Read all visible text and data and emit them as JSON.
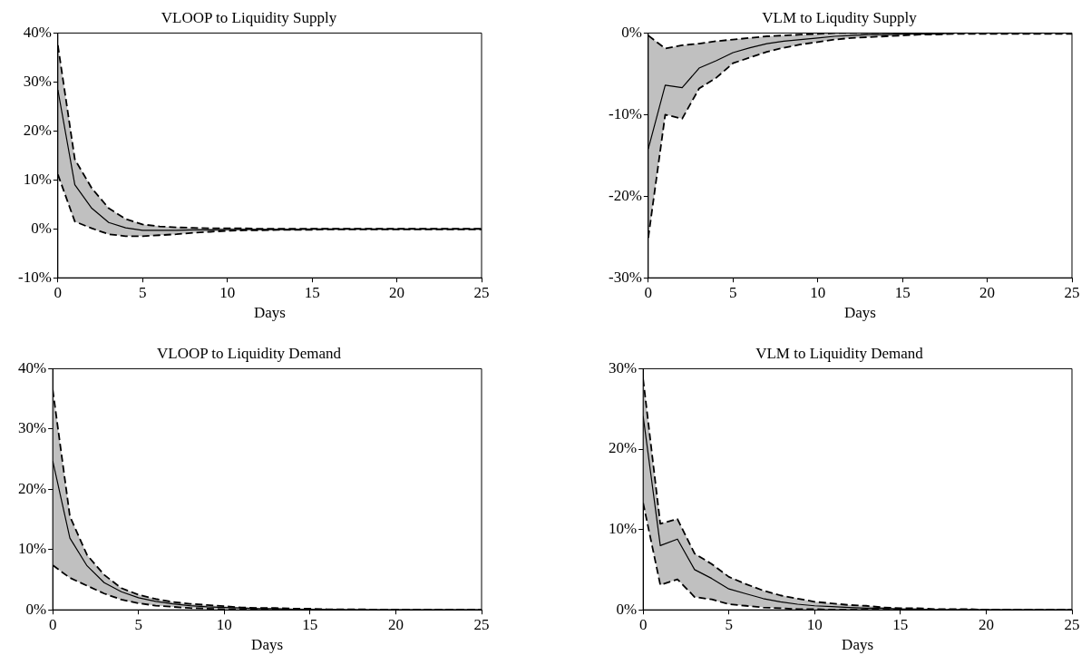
{
  "chart_data": [
    {
      "type": "line",
      "title": "VLOOP to Liquidity Supply",
      "xlabel": "Days",
      "x": [
        0,
        1,
        2,
        3,
        4,
        5,
        6,
        7,
        8,
        9,
        10,
        11,
        12,
        13,
        14,
        15,
        16,
        17,
        18,
        19,
        20,
        21,
        22,
        23,
        24,
        25
      ],
      "xlim": [
        0,
        25
      ],
      "xticks": [
        0,
        5,
        10,
        15,
        20,
        25
      ],
      "ylim": [
        -10,
        40
      ],
      "yticks": [
        {
          "value": -10,
          "label": "-10%"
        },
        {
          "value": 0,
          "label": "0%"
        },
        {
          "value": 10,
          "label": "10%"
        },
        {
          "value": 20,
          "label": "20%"
        },
        {
          "value": 30,
          "label": "30%"
        },
        {
          "value": 40,
          "label": "40%"
        }
      ],
      "grid": false,
      "legend": false,
      "marker": "none",
      "line_style": "solid",
      "series": [
        {
          "color": "#000000",
          "values": [
            28.4,
            9.0,
            4.2,
            1.3,
            0.2,
            -0.3,
            -0.3,
            -0.3,
            -0.2,
            -0.2,
            -0.1,
            -0.1,
            -0.1,
            -0.1,
            -0.1,
            0,
            0,
            0,
            0,
            0,
            0,
            0,
            0,
            0,
            0,
            0
          ],
          "upper": [
            37.5,
            14.2,
            8.3,
            4.2,
            2.0,
            0.9,
            0.5,
            0.3,
            0.2,
            0.1,
            0.1,
            0.1,
            0,
            0,
            0,
            0,
            0,
            0,
            0,
            0,
            0,
            0,
            0,
            0,
            0,
            0
          ],
          "lower": [
            11.1,
            1.5,
            0.1,
            -1.1,
            -1.5,
            -1.5,
            -1.3,
            -1.1,
            -0.8,
            -0.6,
            -0.4,
            -0.3,
            -0.3,
            -0.2,
            -0.2,
            -0.2,
            -0.1,
            -0.1,
            -0.1,
            -0.1,
            -0.1,
            -0.1,
            -0.1,
            -0.1,
            -0.1,
            -0.1
          ]
        },
        {
          "color": "#000000",
          "line_style": "dashed",
          "values": [
            37.5,
            14.2,
            8.3,
            4.2,
            2.0,
            0.9,
            0.5,
            0.3,
            0.2,
            0.1,
            0.1,
            0.1,
            0,
            0,
            0,
            0,
            0,
            0,
            0,
            0,
            0,
            0,
            0,
            0,
            0,
            0
          ]
        },
        {
          "color": "#000000",
          "line_style": "dashed",
          "values": [
            11.1,
            1.5,
            0.1,
            -1.1,
            -1.5,
            -1.5,
            -1.3,
            -1.1,
            -0.8,
            -0.6,
            -0.4,
            -0.3,
            -0.3,
            -0.2,
            -0.2,
            -0.2,
            -0.1,
            -0.1,
            -0.1,
            -0.1,
            -0.1,
            -0.1,
            -0.1,
            -0.1,
            -0.1,
            -0.1
          ]
        }
      ]
    },
    {
      "type": "line",
      "title": "VLM to Liqudity Supply",
      "xlabel": "Days",
      "x": [
        0,
        1,
        2,
        3,
        4,
        5,
        6,
        7,
        8,
        9,
        10,
        11,
        12,
        13,
        14,
        15,
        16,
        17,
        18,
        19,
        20,
        21,
        22,
        23,
        24,
        25
      ],
      "xlim": [
        0,
        25
      ],
      "xticks": [
        0,
        5,
        10,
        15,
        20,
        25
      ],
      "ylim": [
        -30,
        0
      ],
      "yticks": [
        {
          "value": -30,
          "label": "-30%"
        },
        {
          "value": -20,
          "label": "-20%"
        },
        {
          "value": -10,
          "label": "-10%"
        },
        {
          "value": 0,
          "label": "0%"
        }
      ],
      "grid": false,
      "legend": false,
      "marker": "none",
      "line_style": "solid",
      "series": [
        {
          "color": "#000000",
          "values": [
            -14.2,
            -6.4,
            -6.7,
            -4.3,
            -3.4,
            -2.4,
            -1.8,
            -1.3,
            -1.0,
            -0.8,
            -0.6,
            -0.4,
            -0.3,
            -0.2,
            -0.2,
            -0.1,
            -0.1,
            -0.1,
            0,
            0,
            0,
            0,
            0,
            0,
            0,
            0
          ],
          "upper": [
            -0.3,
            -1.9,
            -1.5,
            -1.3,
            -1.0,
            -0.8,
            -0.6,
            -0.4,
            -0.3,
            -0.2,
            -0.1,
            0,
            0,
            0,
            0,
            0,
            0,
            0,
            0,
            0,
            0,
            0,
            0,
            0,
            0,
            0
          ],
          "lower": [
            -25.1,
            -10.0,
            -10.5,
            -6.8,
            -5.5,
            -3.7,
            -3.0,
            -2.3,
            -1.8,
            -1.4,
            -1.1,
            -0.8,
            -0.6,
            -0.5,
            -0.4,
            -0.3,
            -0.2,
            -0.2,
            -0.1,
            -0.1,
            -0.1,
            -0.1,
            -0.1,
            -0.1,
            -0.1,
            -0.1
          ]
        },
        {
          "color": "#000000",
          "line_style": "dashed",
          "values": [
            -0.3,
            -1.9,
            -1.5,
            -1.3,
            -1.0,
            -0.8,
            -0.6,
            -0.4,
            -0.3,
            -0.2,
            -0.1,
            0,
            0,
            0,
            0,
            0,
            0,
            0,
            0,
            0,
            0,
            0,
            0,
            0,
            0,
            0
          ]
        },
        {
          "color": "#000000",
          "line_style": "dashed",
          "values": [
            -25.1,
            -10.0,
            -10.5,
            -6.8,
            -5.5,
            -3.7,
            -3.0,
            -2.3,
            -1.8,
            -1.4,
            -1.1,
            -0.8,
            -0.6,
            -0.5,
            -0.4,
            -0.3,
            -0.2,
            -0.2,
            -0.1,
            -0.1,
            -0.1,
            -0.1,
            -0.1,
            -0.1,
            -0.1,
            -0.1
          ]
        }
      ]
    },
    {
      "type": "line",
      "title": "VLOOP to Liquidity Demand",
      "xlabel": "Days",
      "x": [
        0,
        1,
        2,
        3,
        4,
        5,
        6,
        7,
        8,
        9,
        10,
        11,
        12,
        13,
        14,
        15,
        16,
        17,
        18,
        19,
        20,
        21,
        22,
        23,
        24,
        25
      ],
      "xlim": [
        0,
        25
      ],
      "xticks": [
        0,
        5,
        10,
        15,
        20,
        25
      ],
      "ylim": [
        0,
        40
      ],
      "yticks": [
        {
          "value": 0,
          "label": "0%"
        },
        {
          "value": 10,
          "label": "10%"
        },
        {
          "value": 20,
          "label": "20%"
        },
        {
          "value": 30,
          "label": "30%"
        },
        {
          "value": 40,
          "label": "40%"
        }
      ],
      "grid": false,
      "legend": false,
      "marker": "none",
      "line_style": "solid",
      "series": [
        {
          "color": "#000000",
          "values": [
            24.7,
            11.9,
            7.3,
            4.5,
            3.0,
            2.0,
            1.4,
            1.0,
            0.7,
            0.5,
            0.4,
            0.3,
            0.2,
            0.2,
            0.1,
            0.1,
            0.1,
            0,
            0,
            0,
            0,
            0,
            0,
            0,
            0,
            0
          ],
          "upper": [
            36.5,
            15.5,
            9.1,
            5.8,
            3.6,
            2.5,
            1.8,
            1.3,
            1.0,
            0.8,
            0.6,
            0.4,
            0.3,
            0.3,
            0.2,
            0.2,
            0.1,
            0.1,
            0.1,
            0,
            0,
            0,
            0,
            0,
            0,
            0
          ],
          "lower": [
            7.4,
            5.3,
            4.0,
            2.7,
            1.7,
            1.1,
            0.7,
            0.5,
            0.3,
            0.2,
            0.1,
            0.1,
            0,
            0,
            0,
            0,
            0,
            0,
            0,
            0,
            0,
            0,
            0,
            0,
            0,
            0
          ]
        },
        {
          "color": "#000000",
          "line_style": "dashed",
          "values": [
            36.5,
            15.5,
            9.1,
            5.8,
            3.6,
            2.5,
            1.8,
            1.3,
            1.0,
            0.8,
            0.6,
            0.4,
            0.3,
            0.3,
            0.2,
            0.2,
            0.1,
            0.1,
            0.1,
            0,
            0,
            0,
            0,
            0,
            0,
            0
          ]
        },
        {
          "color": "#000000",
          "line_style": "dashed",
          "values": [
            7.4,
            5.3,
            4.0,
            2.7,
            1.7,
            1.1,
            0.7,
            0.5,
            0.3,
            0.2,
            0.1,
            0.1,
            0,
            0,
            0,
            0,
            0,
            0,
            0,
            0,
            0,
            0,
            0,
            0,
            0,
            0
          ]
        }
      ]
    },
    {
      "type": "line",
      "title": "VLM to Liquidity Demand",
      "xlabel": "Days",
      "x": [
        0,
        1,
        2,
        3,
        4,
        5,
        6,
        7,
        8,
        9,
        10,
        11,
        12,
        13,
        14,
        15,
        16,
        17,
        18,
        19,
        20,
        21,
        22,
        23,
        24,
        25
      ],
      "xlim": [
        0,
        25
      ],
      "xticks": [
        0,
        5,
        10,
        15,
        20,
        25
      ],
      "ylim": [
        0,
        30
      ],
      "yticks": [
        {
          "value": 0,
          "label": "0%"
        },
        {
          "value": 10,
          "label": "10%"
        },
        {
          "value": 20,
          "label": "20%"
        },
        {
          "value": 30,
          "label": "30%"
        }
      ],
      "grid": false,
      "legend": false,
      "marker": "none",
      "line_style": "solid",
      "series": [
        {
          "color": "#000000",
          "values": [
            24.1,
            8.0,
            8.8,
            5.0,
            3.9,
            2.6,
            2.0,
            1.4,
            1.0,
            0.7,
            0.5,
            0.4,
            0.3,
            0.2,
            0.2,
            0.1,
            0.1,
            0,
            0,
            0,
            0,
            0,
            0,
            0,
            0,
            0
          ],
          "upper": [
            28.7,
            10.7,
            11.3,
            7.0,
            5.7,
            4.1,
            3.2,
            2.4,
            1.8,
            1.4,
            1.0,
            0.8,
            0.6,
            0.5,
            0.3,
            0.2,
            0.2,
            0.1,
            0.1,
            0.1,
            0,
            0,
            0,
            0,
            0,
            0
          ],
          "lower": [
            13.3,
            3.1,
            3.8,
            1.6,
            1.3,
            0.7,
            0.5,
            0.3,
            0.2,
            0.1,
            0.1,
            0,
            0,
            0,
            0,
            0,
            0,
            0,
            0,
            0,
            0,
            0,
            0,
            0,
            0,
            0
          ]
        },
        {
          "color": "#000000",
          "line_style": "dashed",
          "values": [
            28.7,
            10.7,
            11.3,
            7.0,
            5.7,
            4.1,
            3.2,
            2.4,
            1.8,
            1.4,
            1.0,
            0.8,
            0.6,
            0.5,
            0.3,
            0.2,
            0.2,
            0.1,
            0.1,
            0.1,
            0,
            0,
            0,
            0,
            0,
            0
          ]
        },
        {
          "color": "#000000",
          "line_style": "dashed",
          "values": [
            13.3,
            3.1,
            3.8,
            1.6,
            1.3,
            0.7,
            0.5,
            0.3,
            0.2,
            0.1,
            0.1,
            0,
            0,
            0,
            0,
            0,
            0,
            0,
            0,
            0,
            0,
            0,
            0,
            0,
            0,
            0
          ]
        }
      ]
    }
  ]
}
